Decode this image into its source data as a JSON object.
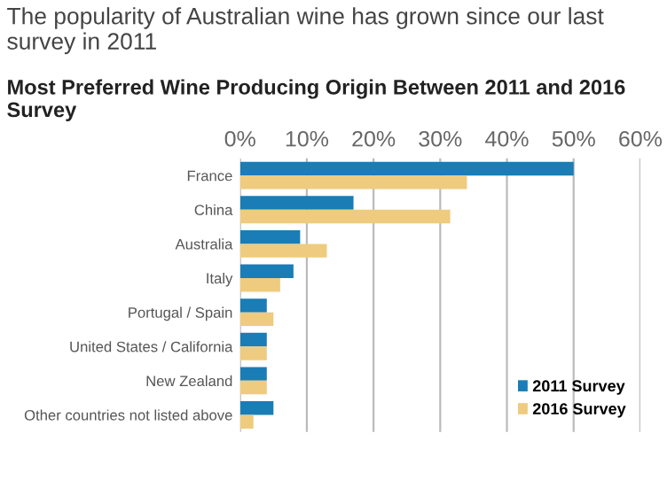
{
  "chart_data": {
    "type": "bar",
    "orientation": "horizontal",
    "title": "The popularity of Australian wine has grown since our last survey in 2011",
    "subtitle": "Most Preferred Wine Producing Origin Between 2011 and 2016 Survey",
    "categories": [
      "France",
      "China",
      "Australia",
      "Italy",
      "Portugal / Spain",
      "United States / California",
      "New Zealand",
      "Other countries not listed above"
    ],
    "series": [
      {
        "name": "2011 Survey",
        "color": "#1a7db5",
        "values": [
          50,
          17,
          9,
          8,
          4,
          4,
          4,
          5
        ]
      },
      {
        "name": "2016 Survey",
        "color": "#eecb7f",
        "values": [
          34,
          31.5,
          13,
          6,
          5,
          4,
          4,
          2
        ]
      }
    ],
    "xlim": [
      0,
      60
    ],
    "xticks": [
      {
        "value": 0,
        "label": "0%"
      },
      {
        "value": 10,
        "label": "10%"
      },
      {
        "value": 20,
        "label": "20%"
      },
      {
        "value": 30,
        "label": "30%"
      },
      {
        "value": 40,
        "label": "40%"
      },
      {
        "value": 50,
        "label": "50%"
      },
      {
        "value": 60,
        "label": "60%"
      }
    ],
    "grid": "x",
    "legend": "bottom right"
  }
}
